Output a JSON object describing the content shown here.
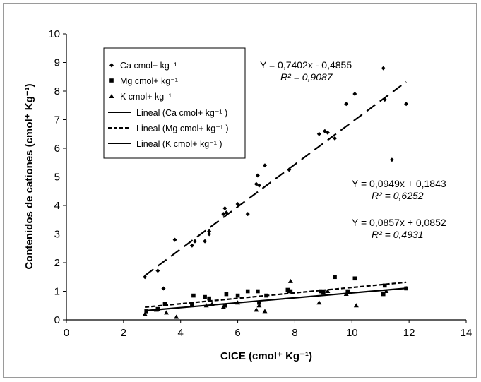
{
  "chart_data": {
    "type": "scatter",
    "xlabel": "CICE (cmol⁺ Kg⁻¹)",
    "ylabel": "Contenidos de cationes (cmol⁺ Kg⁻¹)",
    "xlim": [
      0,
      14
    ],
    "ylim": [
      0,
      10
    ],
    "x_ticks": [
      "0",
      "2",
      "4",
      "6",
      "8",
      "10",
      "12",
      "14"
    ],
    "y_ticks": [
      "0",
      "1",
      "2",
      "3",
      "4",
      "5",
      "6",
      "7",
      "8",
      "9",
      "10"
    ],
    "grid": false,
    "legend_position": "top-left",
    "series": [
      {
        "name": "Ca cmol+ kg⁻¹",
        "marker": "diamond",
        "points": [
          [
            2.75,
            1.5
          ],
          [
            3.2,
            1.72
          ],
          [
            3.4,
            1.1
          ],
          [
            3.8,
            2.8
          ],
          [
            4.4,
            2.6
          ],
          [
            4.5,
            2.75
          ],
          [
            4.85,
            2.75
          ],
          [
            5.0,
            3.0
          ],
          [
            5.0,
            3.1
          ],
          [
            5.5,
            3.7
          ],
          [
            5.55,
            3.9
          ],
          [
            5.6,
            3.75
          ],
          [
            6.0,
            4.05
          ],
          [
            6.35,
            3.7
          ],
          [
            6.65,
            4.75
          ],
          [
            6.7,
            5.05
          ],
          [
            6.75,
            4.7
          ],
          [
            6.95,
            5.4
          ],
          [
            7.8,
            5.25
          ],
          [
            8.85,
            6.5
          ],
          [
            9.05,
            6.6
          ],
          [
            9.15,
            6.55
          ],
          [
            9.4,
            6.35
          ],
          [
            9.8,
            7.55
          ],
          [
            10.1,
            7.9
          ],
          [
            11.1,
            8.8
          ],
          [
            11.15,
            7.7
          ],
          [
            11.4,
            5.6
          ],
          [
            11.9,
            7.55
          ]
        ]
      },
      {
        "name": "Mg cmol+ kg⁻¹",
        "marker": "square",
        "points": [
          [
            2.8,
            0.3
          ],
          [
            3.2,
            0.38
          ],
          [
            3.45,
            0.55
          ],
          [
            4.4,
            0.55
          ],
          [
            4.45,
            0.85
          ],
          [
            4.85,
            0.8
          ],
          [
            5.0,
            0.75
          ],
          [
            5.55,
            0.5
          ],
          [
            5.6,
            0.9
          ],
          [
            6.0,
            0.85
          ],
          [
            6.35,
            1.0
          ],
          [
            6.7,
            1.0
          ],
          [
            6.75,
            0.6
          ],
          [
            7.0,
            0.85
          ],
          [
            7.75,
            1.05
          ],
          [
            7.85,
            1.0
          ],
          [
            8.9,
            1.0
          ],
          [
            9.0,
            0.95
          ],
          [
            9.4,
            1.5
          ],
          [
            9.85,
            1.0
          ],
          [
            10.1,
            1.45
          ],
          [
            11.1,
            0.9
          ],
          [
            11.15,
            1.2
          ],
          [
            11.9,
            1.1
          ]
        ]
      },
      {
        "name": "K cmol+ kg⁻¹",
        "marker": "triangle",
        "points": [
          [
            2.75,
            0.2
          ],
          [
            3.15,
            0.35
          ],
          [
            3.5,
            0.25
          ],
          [
            3.85,
            0.1
          ],
          [
            4.9,
            0.5
          ],
          [
            5.1,
            0.55
          ],
          [
            5.5,
            0.45
          ],
          [
            6.0,
            0.6
          ],
          [
            6.65,
            0.35
          ],
          [
            6.75,
            0.5
          ],
          [
            6.95,
            0.3
          ],
          [
            7.8,
            1.0
          ],
          [
            7.85,
            1.35
          ],
          [
            8.85,
            0.6
          ],
          [
            9.15,
            1.0
          ],
          [
            9.8,
            0.9
          ],
          [
            10.15,
            0.5
          ],
          [
            11.2,
            1.0
          ],
          [
            11.9,
            1.1
          ]
        ]
      }
    ],
    "trendlines": [
      {
        "name": "Lineal (Ca cmol+ kg⁻¹ )",
        "slope": 0.7402,
        "intercept": -0.4855,
        "x_range": [
          2.75,
          11.9
        ],
        "style": "long-dash"
      },
      {
        "name": "Lineal (Mg cmol+ kg⁻¹ )",
        "slope": 0.0949,
        "intercept": 0.1843,
        "x_range": [
          2.75,
          11.9
        ],
        "style": "short-dash"
      },
      {
        "name": "Lineal (K cmol+ kg⁻¹ )",
        "slope": 0.0857,
        "intercept": 0.0852,
        "x_range": [
          2.75,
          11.9
        ],
        "style": "solid"
      }
    ],
    "annotations": [
      {
        "equation": "Y = 0,7402x - 0,4855",
        "r2": "R² = 0,9087"
      },
      {
        "equation": "Y = 0,0949x + 0,1843",
        "r2": "R² = 0,6252"
      },
      {
        "equation": "Y = 0,0857x + 0,0852",
        "r2": "R² = 0,4931"
      }
    ]
  }
}
